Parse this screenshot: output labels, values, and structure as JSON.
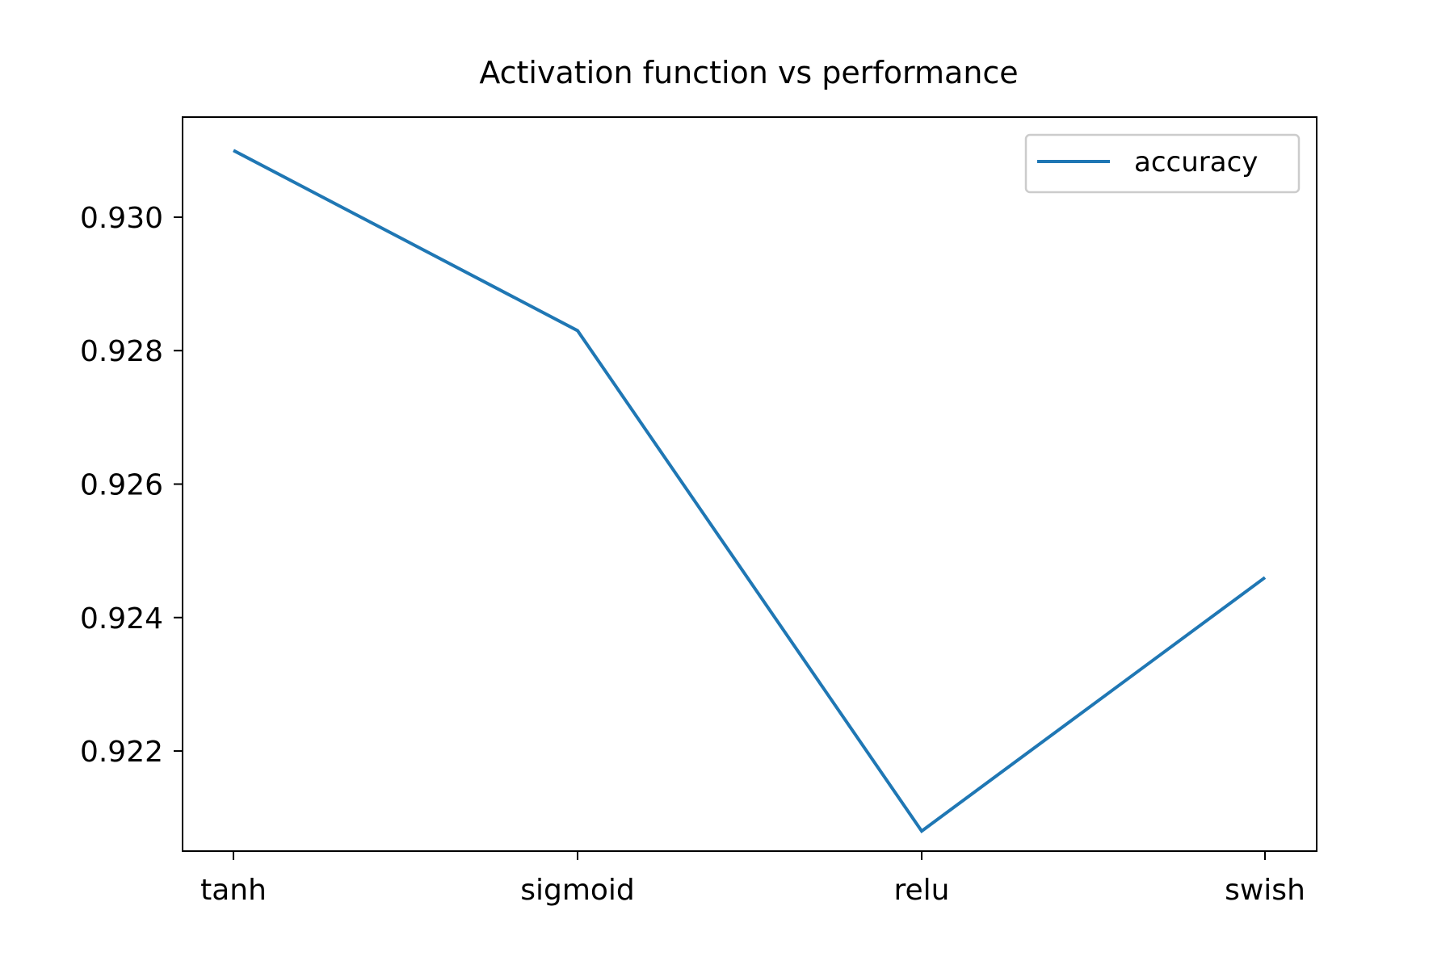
{
  "chart_data": {
    "type": "line",
    "title": "Activation function vs performance",
    "xlabel": "",
    "ylabel": "",
    "categories": [
      "tanh",
      "sigmoid",
      "relu",
      "swish"
    ],
    "series": [
      {
        "name": "accuracy",
        "values": [
          0.931,
          0.9283,
          0.9208,
          0.9246
        ]
      }
    ],
    "ylim": [
      0.9205,
      0.9315
    ],
    "yticks": [
      0.922,
      0.924,
      0.926,
      0.928,
      0.93
    ],
    "ytick_labels": [
      "0.922",
      "0.924",
      "0.926",
      "0.928",
      "0.930"
    ],
    "grid": false,
    "legend_position": "top-right",
    "colors": {
      "series": "#1f77b4",
      "axes": "#000000",
      "legend_border": "#cccccc"
    }
  }
}
